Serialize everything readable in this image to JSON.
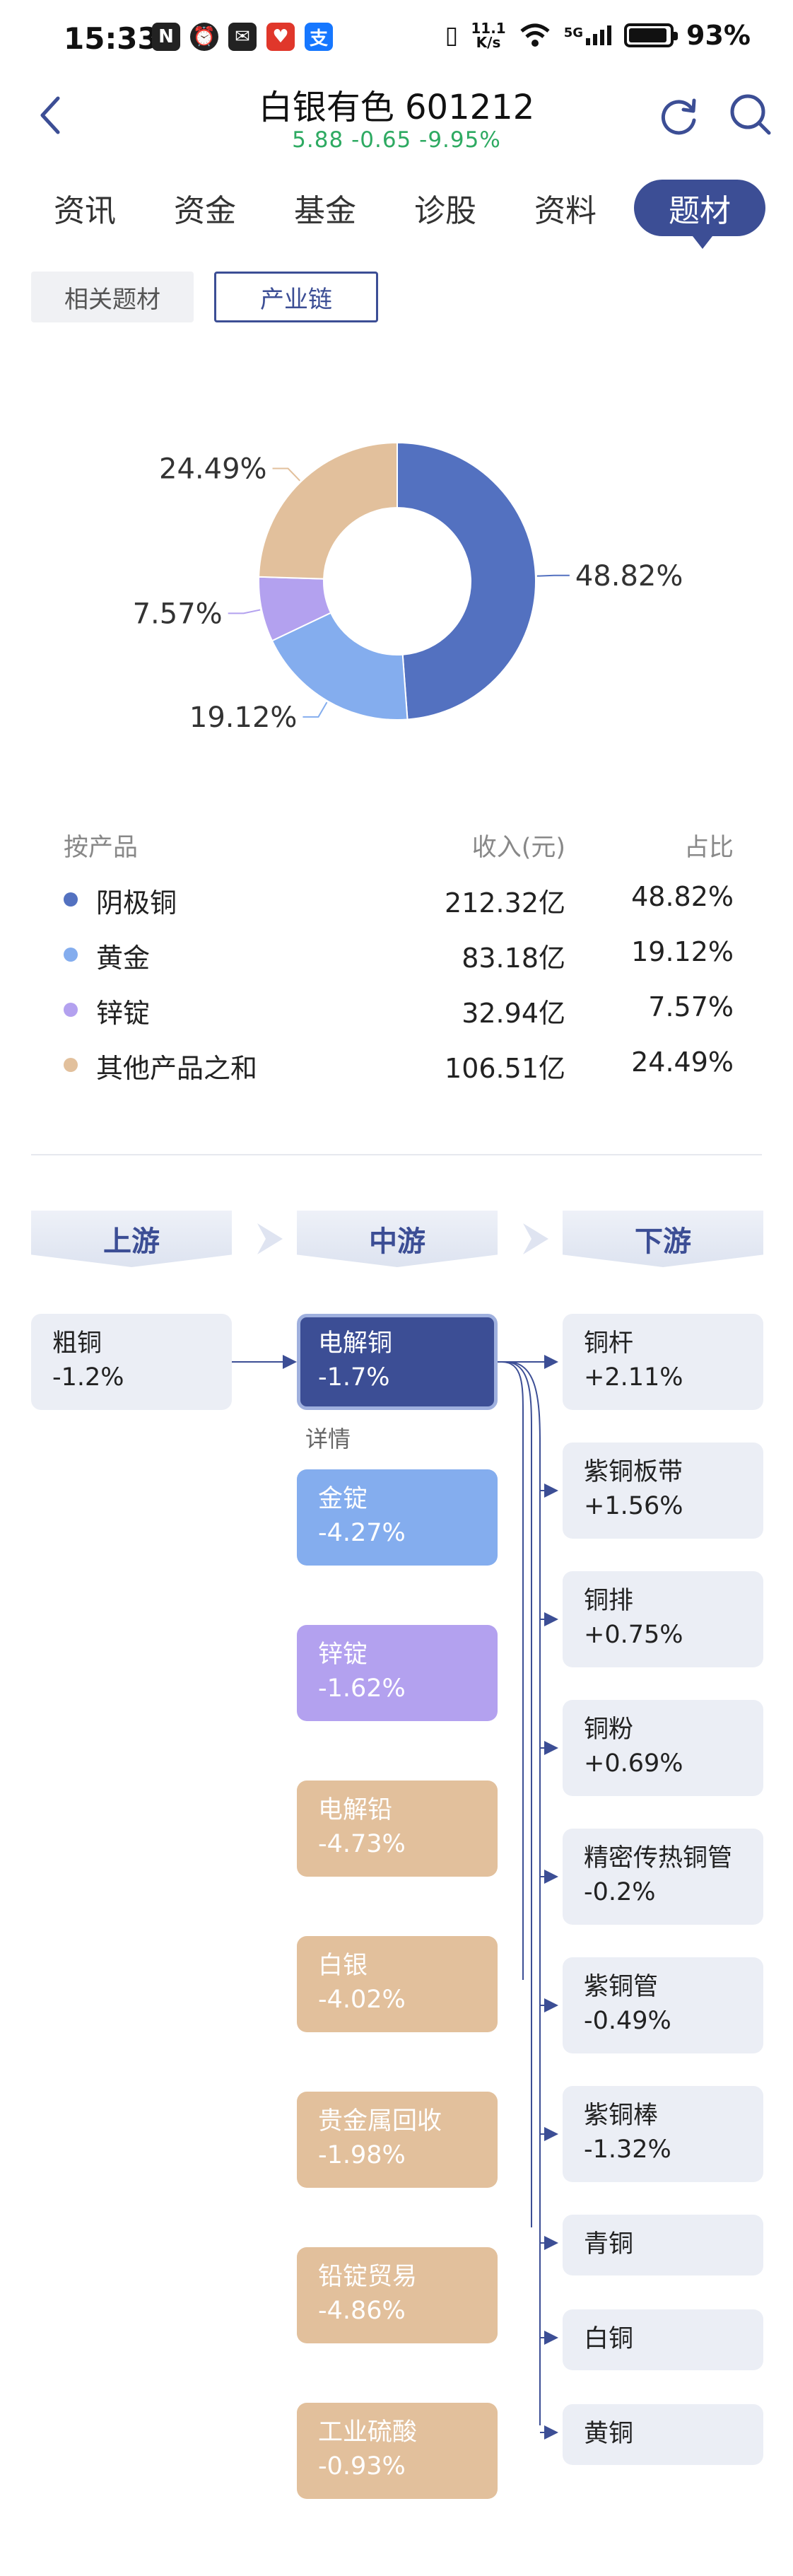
{
  "status_bar": {
    "time": "15:33",
    "speed_top": "11.1",
    "speed_unit": "K/s",
    "network": "5G",
    "battery": "93%"
  },
  "header": {
    "title": "白银有色 601212",
    "price": "5.88",
    "change": "-0.65",
    "change_pct": "-9.95%",
    "back_icon": "chevron-left-icon",
    "refresh_icon": "refresh-icon",
    "search_icon": "search-icon"
  },
  "tabs": [
    {
      "label": "资讯"
    },
    {
      "label": "资金"
    },
    {
      "label": "基金"
    },
    {
      "label": "诊股"
    },
    {
      "label": "资料"
    },
    {
      "label": "题材",
      "active": true
    }
  ],
  "sub_tabs": [
    {
      "label": "相关题材"
    },
    {
      "label": "产业链",
      "selected": true
    }
  ],
  "chart_data": {
    "type": "pie",
    "categories": [
      "阴极铜",
      "黄金",
      "锌锭",
      "其他产品之和"
    ],
    "values": [
      48.82,
      19.12,
      7.57,
      24.49
    ],
    "labels": [
      "48.82%",
      "19.12%",
      "7.57%",
      "24.49%"
    ],
    "colors": [
      "#5371c0",
      "#84adee",
      "#b3a1ef",
      "#e2c09c"
    ],
    "donut": true
  },
  "product_table": {
    "headers": {
      "product": "按产品",
      "revenue": "收入(元)",
      "share": "占比"
    },
    "rows": [
      {
        "name": "阴极铜",
        "revenue": "212.32亿",
        "share": "48.82%",
        "color": "#5371c0"
      },
      {
        "name": "黄金",
        "revenue": "83.18亿",
        "share": "19.12%",
        "color": "#84adee"
      },
      {
        "name": "锌锭",
        "revenue": "32.94亿",
        "share": "7.57%",
        "color": "#b3a1ef"
      },
      {
        "name": "其他产品之和",
        "revenue": "106.51亿",
        "share": "24.49%",
        "color": "#e2c09c"
      }
    ]
  },
  "chain": {
    "headers": {
      "upstream": "上游",
      "midstream": "中游",
      "downstream": "下游"
    },
    "detail_label": "详情",
    "upstream": [
      {
        "name": "粗铜",
        "change": "-1.2%"
      }
    ],
    "midstream": [
      {
        "name": "电解铜",
        "change": "-1.7%"
      },
      {
        "name": "金锭",
        "change": "-4.27%"
      },
      {
        "name": "锌锭",
        "change": "-1.62%"
      },
      {
        "name": "电解铅",
        "change": "-4.73%"
      },
      {
        "name": "白银",
        "change": "-4.02%"
      },
      {
        "name": "贵金属回收",
        "change": "-1.98%"
      },
      {
        "name": "铅锭贸易",
        "change": "-4.86%"
      },
      {
        "name": "工业硫酸",
        "change": "-0.93%"
      }
    ],
    "downstream": [
      {
        "name": "铜杆",
        "change": "+2.11%"
      },
      {
        "name": "紫铜板带",
        "change": "+1.56%"
      },
      {
        "name": "铜排",
        "change": "+0.75%"
      },
      {
        "name": "铜粉",
        "change": "+0.69%"
      },
      {
        "name": "精密传热铜管",
        "change": "-0.2%"
      },
      {
        "name": "紫铜管",
        "change": "-0.49%"
      },
      {
        "name": "紫铜棒",
        "change": "-1.32%"
      },
      {
        "name": "青铜"
      },
      {
        "name": "白铜"
      },
      {
        "name": "黄铜"
      }
    ]
  }
}
